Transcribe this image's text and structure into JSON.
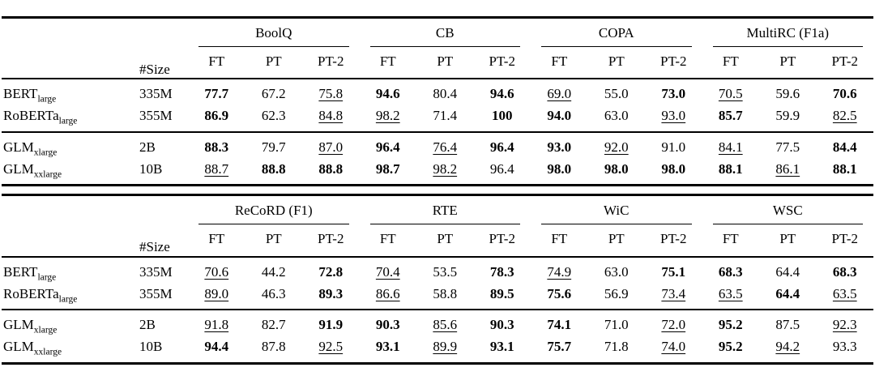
{
  "page": {
    "background": "#ffffff",
    "text_color": "#000000",
    "rule_color": "#000000"
  },
  "tables": [
    {
      "size_header": "#Size",
      "groups": [
        "BoolQ",
        "CB",
        "COPA",
        "MultiRC (F1a)"
      ],
      "sub_headers": [
        "FT",
        "PT",
        "PT-2"
      ],
      "row_groups": [
        {
          "rows": [
            {
              "model": "BERT",
              "model_subscript": "large",
              "size": "335M",
              "cells": [
                {
                  "v": "77.7",
                  "style": "bold"
                },
                {
                  "v": "67.2",
                  "style": "plain"
                },
                {
                  "v": "75.8",
                  "style": "underline"
                },
                {
                  "v": "94.6",
                  "style": "bold"
                },
                {
                  "v": "80.4",
                  "style": "plain"
                },
                {
                  "v": "94.6",
                  "style": "bold"
                },
                {
                  "v": "69.0",
                  "style": "underline"
                },
                {
                  "v": "55.0",
                  "style": "plain"
                },
                {
                  "v": "73.0",
                  "style": "bold"
                },
                {
                  "v": "70.5",
                  "style": "underline"
                },
                {
                  "v": "59.6",
                  "style": "plain"
                },
                {
                  "v": "70.6",
                  "style": "bold"
                }
              ]
            },
            {
              "model": "RoBERTa",
              "model_subscript": "large",
              "size": "355M",
              "cells": [
                {
                  "v": "86.9",
                  "style": "bold"
                },
                {
                  "v": "62.3",
                  "style": "plain"
                },
                {
                  "v": "84.8",
                  "style": "underline"
                },
                {
                  "v": "98.2",
                  "style": "underline"
                },
                {
                  "v": "71.4",
                  "style": "plain"
                },
                {
                  "v": "100",
                  "style": "bold"
                },
                {
                  "v": "94.0",
                  "style": "bold"
                },
                {
                  "v": "63.0",
                  "style": "plain"
                },
                {
                  "v": "93.0",
                  "style": "underline"
                },
                {
                  "v": "85.7",
                  "style": "bold"
                },
                {
                  "v": "59.9",
                  "style": "plain"
                },
                {
                  "v": "82.5",
                  "style": "underline"
                }
              ]
            }
          ]
        },
        {
          "rows": [
            {
              "model": "GLM",
              "model_subscript": "xlarge",
              "size": "2B",
              "cells": [
                {
                  "v": "88.3",
                  "style": "bold"
                },
                {
                  "v": "79.7",
                  "style": "plain"
                },
                {
                  "v": "87.0",
                  "style": "underline"
                },
                {
                  "v": "96.4",
                  "style": "bold"
                },
                {
                  "v": "76.4",
                  "style": "underline"
                },
                {
                  "v": "96.4",
                  "style": "bold"
                },
                {
                  "v": "93.0",
                  "style": "bold"
                },
                {
                  "v": "92.0",
                  "style": "underline"
                },
                {
                  "v": "91.0",
                  "style": "plain"
                },
                {
                  "v": "84.1",
                  "style": "underline"
                },
                {
                  "v": "77.5",
                  "style": "plain"
                },
                {
                  "v": "84.4",
                  "style": "bold"
                }
              ]
            },
            {
              "model": "GLM",
              "model_subscript": "xxlarge",
              "size": "10B",
              "cells": [
                {
                  "v": "88.7",
                  "style": "underline"
                },
                {
                  "v": "88.8",
                  "style": "bold"
                },
                {
                  "v": "88.8",
                  "style": "bold"
                },
                {
                  "v": "98.7",
                  "style": "bold"
                },
                {
                  "v": "98.2",
                  "style": "underline"
                },
                {
                  "v": "96.4",
                  "style": "plain"
                },
                {
                  "v": "98.0",
                  "style": "bold"
                },
                {
                  "v": "98.0",
                  "style": "bold"
                },
                {
                  "v": "98.0",
                  "style": "bold"
                },
                {
                  "v": "88.1",
                  "style": "bold"
                },
                {
                  "v": "86.1",
                  "style": "underline"
                },
                {
                  "v": "88.1",
                  "style": "bold"
                }
              ]
            }
          ]
        }
      ]
    },
    {
      "size_header": "#Size",
      "groups": [
        "ReCoRD (F1)",
        "RTE",
        "WiC",
        "WSC"
      ],
      "sub_headers": [
        "FT",
        "PT",
        "PT-2"
      ],
      "row_groups": [
        {
          "rows": [
            {
              "model": "BERT",
              "model_subscript": "large",
              "size": "335M",
              "cells": [
                {
                  "v": "70.6",
                  "style": "underline"
                },
                {
                  "v": "44.2",
                  "style": "plain"
                },
                {
                  "v": "72.8",
                  "style": "bold"
                },
                {
                  "v": "70.4",
                  "style": "underline"
                },
                {
                  "v": "53.5",
                  "style": "plain"
                },
                {
                  "v": "78.3",
                  "style": "bold"
                },
                {
                  "v": "74.9",
                  "style": "underline"
                },
                {
                  "v": "63.0",
                  "style": "plain"
                },
                {
                  "v": "75.1",
                  "style": "bold"
                },
                {
                  "v": "68.3",
                  "style": "bold"
                },
                {
                  "v": "64.4",
                  "style": "plain"
                },
                {
                  "v": "68.3",
                  "style": "bold"
                }
              ]
            },
            {
              "model": "RoBERTa",
              "model_subscript": "large",
              "size": "355M",
              "cells": [
                {
                  "v": "89.0",
                  "style": "underline"
                },
                {
                  "v": "46.3",
                  "style": "plain"
                },
                {
                  "v": "89.3",
                  "style": "bold"
                },
                {
                  "v": "86.6",
                  "style": "underline"
                },
                {
                  "v": "58.8",
                  "style": "plain"
                },
                {
                  "v": "89.5",
                  "style": "bold"
                },
                {
                  "v": "75.6",
                  "style": "bold"
                },
                {
                  "v": "56.9",
                  "style": "plain"
                },
                {
                  "v": "73.4",
                  "style": "underline"
                },
                {
                  "v": "63.5",
                  "style": "underline"
                },
                {
                  "v": "64.4",
                  "style": "bold"
                },
                {
                  "v": "63.5",
                  "style": "underline"
                }
              ]
            }
          ]
        },
        {
          "rows": [
            {
              "model": "GLM",
              "model_subscript": "xlarge",
              "size": "2B",
              "cells": [
                {
                  "v": "91.8",
                  "style": "underline"
                },
                {
                  "v": "82.7",
                  "style": "plain"
                },
                {
                  "v": "91.9",
                  "style": "bold"
                },
                {
                  "v": "90.3",
                  "style": "bold"
                },
                {
                  "v": "85.6",
                  "style": "underline"
                },
                {
                  "v": "90.3",
                  "style": "bold"
                },
                {
                  "v": "74.1",
                  "style": "bold"
                },
                {
                  "v": "71.0",
                  "style": "plain"
                },
                {
                  "v": "72.0",
                  "style": "underline"
                },
                {
                  "v": "95.2",
                  "style": "bold"
                },
                {
                  "v": "87.5",
                  "style": "plain"
                },
                {
                  "v": "92.3",
                  "style": "underline"
                }
              ]
            },
            {
              "model": "GLM",
              "model_subscript": "xxlarge",
              "size": "10B",
              "cells": [
                {
                  "v": "94.4",
                  "style": "bold"
                },
                {
                  "v": "87.8",
                  "style": "plain"
                },
                {
                  "v": "92.5",
                  "style": "underline"
                },
                {
                  "v": "93.1",
                  "style": "bold"
                },
                {
                  "v": "89.9",
                  "style": "underline"
                },
                {
                  "v": "93.1",
                  "style": "bold"
                },
                {
                  "v": "75.7",
                  "style": "bold"
                },
                {
                  "v": "71.8",
                  "style": "plain"
                },
                {
                  "v": "74.0",
                  "style": "underline"
                },
                {
                  "v": "95.2",
                  "style": "bold"
                },
                {
                  "v": "94.2",
                  "style": "underline"
                },
                {
                  "v": "93.3",
                  "style": "plain"
                }
              ]
            }
          ]
        }
      ]
    }
  ]
}
